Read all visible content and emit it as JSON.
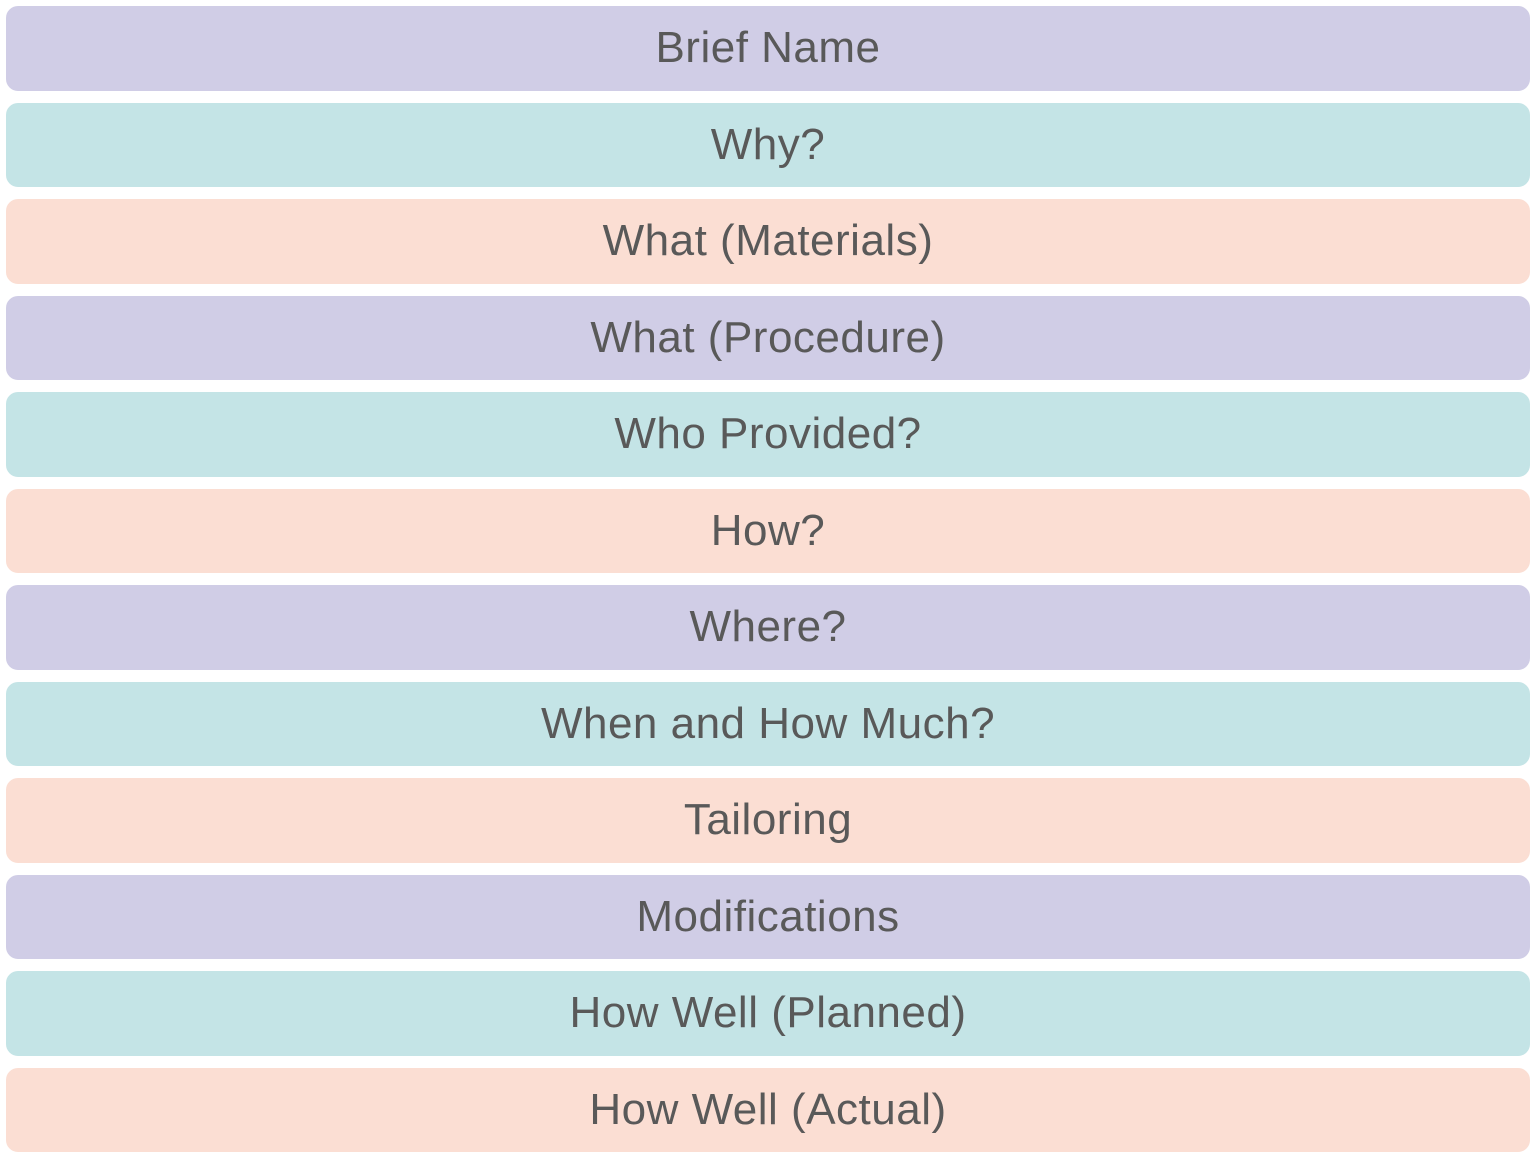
{
  "palette": {
    "lavender": "#D0CDE6",
    "teal": "#C4E4E6",
    "peach": "#FBDED3",
    "text": "#595959",
    "gap": "#ffffff"
  },
  "rows": [
    {
      "label": "Brief Name",
      "color": "lavender"
    },
    {
      "label": "Why?",
      "color": "teal"
    },
    {
      "label": "What (Materials)",
      "color": "peach"
    },
    {
      "label": "What (Procedure)",
      "color": "lavender"
    },
    {
      "label": "Who Provided?",
      "color": "teal"
    },
    {
      "label": "How?",
      "color": "peach"
    },
    {
      "label": "Where?",
      "color": "lavender"
    },
    {
      "label": "When and How Much?",
      "color": "teal"
    },
    {
      "label": "Tailoring",
      "color": "peach"
    },
    {
      "label": "Modifications",
      "color": "lavender"
    },
    {
      "label": "How Well (Planned)",
      "color": "teal"
    },
    {
      "label": "How Well (Actual)",
      "color": "peach"
    }
  ]
}
